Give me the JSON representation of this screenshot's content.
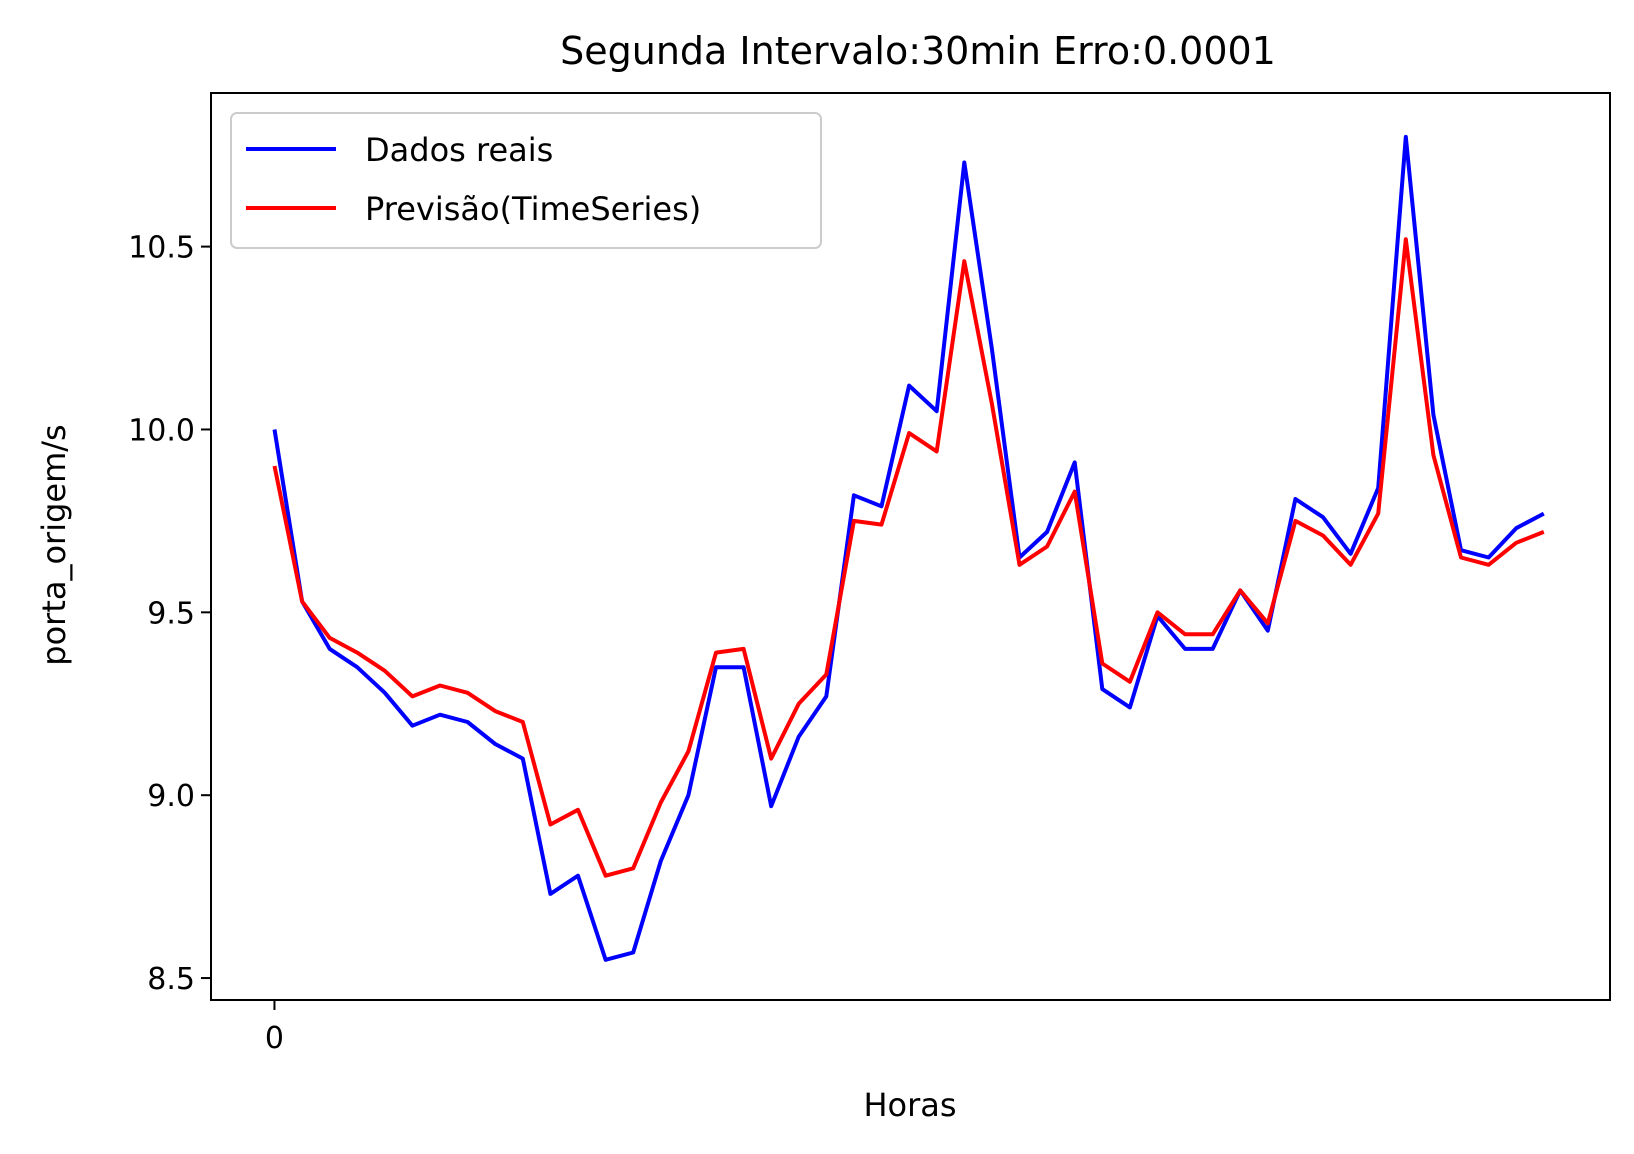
{
  "chart_data": {
    "type": "line",
    "title": "Segunda Intervalo:30min Erro:0.0001",
    "xlabel": "Horas",
    "ylabel": "porta_origem/s",
    "x_ticks": [
      {
        "value": 0,
        "label": "0"
      }
    ],
    "y_ticks": [
      {
        "value": 8.5,
        "label": "8.5"
      },
      {
        "value": 9.0,
        "label": "9.0"
      },
      {
        "value": 9.5,
        "label": "9.5"
      },
      {
        "value": 10.0,
        "label": "10.0"
      },
      {
        "value": 10.5,
        "label": "10.5"
      }
    ],
    "xlim": [
      -2.3,
      48.4
    ],
    "ylim": [
      8.44,
      10.92
    ],
    "grid": false,
    "legend_position": "top-left",
    "series": [
      {
        "name": "Dados reais",
        "color": "#0000ff",
        "values": [
          10.0,
          9.53,
          9.4,
          9.35,
          9.28,
          9.19,
          9.22,
          9.2,
          9.14,
          9.1,
          8.73,
          8.78,
          8.55,
          8.57,
          8.82,
          9.0,
          9.35,
          9.35,
          8.97,
          9.16,
          9.27,
          9.82,
          9.79,
          10.12,
          10.05,
          10.73,
          10.22,
          9.65,
          9.72,
          9.91,
          9.29,
          9.24,
          9.49,
          9.4,
          9.4,
          9.56,
          9.45,
          9.81,
          9.76,
          9.66,
          9.84,
          10.8,
          10.04,
          9.67,
          9.65,
          9.73,
          9.77
        ]
      },
      {
        "name": "Previsão(TimeSeries)",
        "color": "#ff0000",
        "values": [
          9.9,
          9.53,
          9.43,
          9.39,
          9.34,
          9.27,
          9.3,
          9.28,
          9.23,
          9.2,
          8.92,
          8.96,
          8.78,
          8.8,
          8.98,
          9.12,
          9.39,
          9.4,
          9.1,
          9.25,
          9.33,
          9.75,
          9.74,
          9.99,
          9.94,
          10.46,
          10.07,
          9.63,
          9.68,
          9.83,
          9.36,
          9.31,
          9.5,
          9.44,
          9.44,
          9.56,
          9.47,
          9.75,
          9.71,
          9.63,
          9.77,
          10.52,
          9.93,
          9.65,
          9.63,
          9.69,
          9.72
        ]
      }
    ]
  }
}
